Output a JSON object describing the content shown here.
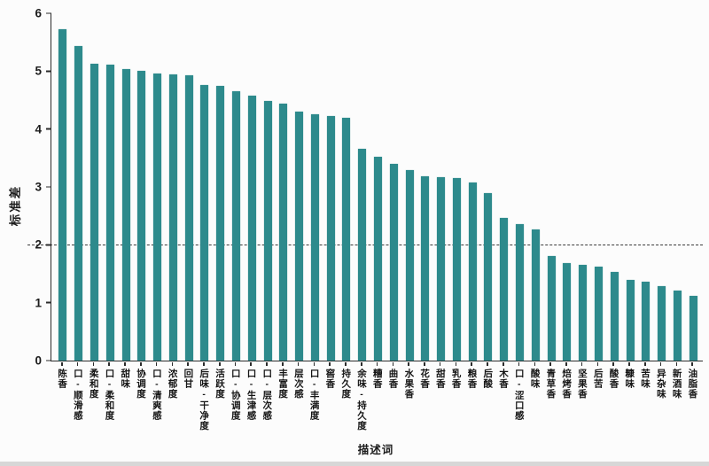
{
  "chart_data": {
    "type": "bar",
    "title": "",
    "xlabel": "描述词",
    "ylabel": "标准差",
    "ylim": [
      0,
      6
    ],
    "yticks": [
      0,
      1,
      2,
      3,
      4,
      5,
      6
    ],
    "reference_line_y": 2,
    "grid": false,
    "legend": false,
    "bar_color": "#2d8a8c",
    "axis_color": "#2b2b2b",
    "categories": [
      "陈香",
      "口-顺滑感",
      "柔和度",
      "口-柔和度",
      "甜味",
      "协调度",
      "口-清爽感",
      "浓郁度",
      "回甘",
      "后味-干净度",
      "活跃度",
      "口-协调度",
      "口-生津感",
      "口-层次感",
      "丰富度",
      "层次感",
      "口-丰满度",
      "窖香",
      "持久度",
      "余味-持久度",
      "糟香",
      "曲香",
      "水果香",
      "花香",
      "甜香",
      "乳香",
      "粮香",
      "后酸",
      "木香",
      "口-涩口感",
      "酸味",
      "青草香",
      "焙烤香",
      "坚果香",
      "后苦",
      "酸香",
      "糠味",
      "苦味",
      "异杂味",
      "新酒味",
      "油脂香"
    ],
    "values": [
      5.72,
      5.43,
      5.13,
      5.12,
      5.03,
      5.01,
      4.96,
      4.95,
      4.93,
      4.76,
      4.74,
      4.66,
      4.58,
      4.48,
      4.44,
      4.3,
      4.26,
      4.22,
      4.19,
      3.66,
      3.52,
      3.4,
      3.29,
      3.19,
      3.17,
      3.16,
      3.07,
      2.89,
      2.46,
      2.36,
      2.26,
      1.81,
      1.68,
      1.66,
      1.63,
      1.53,
      1.39,
      1.36,
      1.28,
      1.21,
      1.11
    ]
  }
}
